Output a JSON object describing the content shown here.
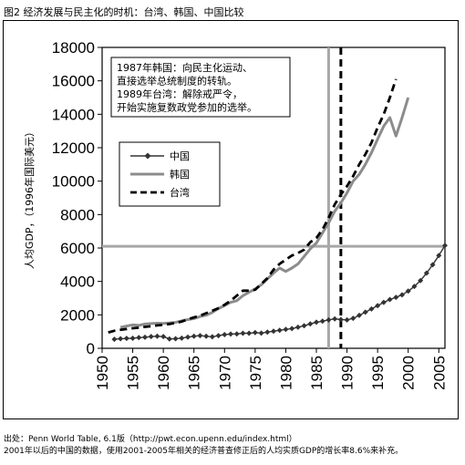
{
  "figure": {
    "title": "图2 经济发展与民主化的时机：台湾、韩国、中国比较",
    "source_line1": "出处：Penn World Table, 6.1版（http://pwt.econ.upenn.edu/index.html）",
    "source_line2": "2001年以后的中国的数据，使用2001-2005年相关的经济普查修正后的人均实质GDP的增长率8.6%来补充。"
  },
  "chart_data": {
    "type": "line",
    "title": "",
    "xlabel": "",
    "ylabel": "人均GDP，（1996年国际美元）",
    "xlim": [
      1950,
      2006
    ],
    "ylim": [
      0,
      18000
    ],
    "x_ticks": [
      1950,
      1955,
      1960,
      1965,
      1970,
      1975,
      1980,
      1985,
      1990,
      1995,
      2000,
      2005
    ],
    "y_ticks": [
      0,
      2000,
      4000,
      6000,
      8000,
      10000,
      12000,
      14000,
      16000,
      18000
    ],
    "legend": {
      "placement": "middle-left"
    },
    "annotation": [
      "1987年韩国：向民主化运动、",
      "直接选举总统制度的转轨。",
      "1989年台湾：解除戒严令，",
      "开始实施复数政党参加的选举。"
    ],
    "reference_lines": [
      {
        "orientation": "vertical",
        "value": 1987,
        "style": "solid-gray"
      },
      {
        "orientation": "vertical",
        "value": 1989,
        "style": "dashed-black"
      },
      {
        "orientation": "horizontal",
        "value": 6100,
        "style": "solid-gray"
      }
    ],
    "series": [
      {
        "name": "中国",
        "style": "diamond-line",
        "color": "#333333",
        "x": [
          1952,
          1953,
          1954,
          1955,
          1956,
          1957,
          1958,
          1959,
          1960,
          1961,
          1962,
          1963,
          1964,
          1965,
          1966,
          1967,
          1968,
          1969,
          1970,
          1971,
          1972,
          1973,
          1974,
          1975,
          1976,
          1977,
          1978,
          1979,
          1980,
          1981,
          1982,
          1983,
          1984,
          1985,
          1986,
          1987,
          1988,
          1989,
          1990,
          1991,
          1992,
          1993,
          1994,
          1995,
          1996,
          1997,
          1998,
          1999,
          2000,
          2001,
          2002,
          2003,
          2004,
          2005,
          2006
        ],
        "y": [
          540,
          570,
          590,
          600,
          640,
          660,
          700,
          720,
          700,
          560,
          570,
          610,
          670,
          720,
          760,
          720,
          690,
          760,
          820,
          850,
          860,
          900,
          900,
          940,
          910,
          970,
          1020,
          1080,
          1130,
          1180,
          1260,
          1350,
          1460,
          1560,
          1620,
          1700,
          1760,
          1720,
          1700,
          1790,
          1970,
          2160,
          2350,
          2550,
          2750,
          2920,
          3050,
          3200,
          3420,
          3700,
          4050,
          4500,
          5000,
          5550,
          6150
        ]
      },
      {
        "name": "韩国",
        "style": "solid-line",
        "color": "#8c8c8c",
        "x": [
          1953,
          1954,
          1955,
          1956,
          1957,
          1958,
          1959,
          1960,
          1961,
          1962,
          1963,
          1964,
          1965,
          1966,
          1967,
          1968,
          1969,
          1970,
          1971,
          1972,
          1973,
          1974,
          1975,
          1976,
          1977,
          1978,
          1979,
          1980,
          1981,
          1982,
          1983,
          1984,
          1985,
          1986,
          1987,
          1988,
          1989,
          1990,
          1991,
          1992,
          1993,
          1994,
          1995,
          1996,
          1997,
          1998,
          1999,
          2000
        ],
        "y": [
          1250,
          1330,
          1400,
          1370,
          1450,
          1480,
          1500,
          1490,
          1520,
          1550,
          1640,
          1720,
          1780,
          1900,
          1980,
          2150,
          2380,
          2560,
          2750,
          2850,
          3150,
          3350,
          3550,
          3800,
          4150,
          4500,
          4800,
          4600,
          4800,
          5050,
          5500,
          5950,
          6300,
          6900,
          7500,
          8200,
          8700,
          9300,
          10000,
          10400,
          11000,
          11700,
          12500,
          13300,
          13800,
          12700,
          13800,
          15000
        ]
      },
      {
        "name": "台湾",
        "style": "dashed-line",
        "color": "#000000",
        "x": [
          1951,
          1952,
          1953,
          1954,
          1955,
          1956,
          1957,
          1958,
          1959,
          1960,
          1961,
          1962,
          1963,
          1964,
          1965,
          1966,
          1967,
          1968,
          1969,
          1970,
          1971,
          1972,
          1973,
          1974,
          1975,
          1976,
          1977,
          1978,
          1979,
          1980,
          1981,
          1982,
          1983,
          1984,
          1985,
          1986,
          1987,
          1988,
          1989,
          1990,
          1991,
          1992,
          1993,
          1994,
          1995,
          1996,
          1997,
          1998
        ],
        "y": [
          950,
          1050,
          1100,
          1150,
          1200,
          1230,
          1280,
          1320,
          1370,
          1400,
          1450,
          1520,
          1600,
          1730,
          1850,
          1950,
          2100,
          2250,
          2400,
          2600,
          2850,
          3150,
          3450,
          3450,
          3500,
          3850,
          4200,
          4700,
          5050,
          5300,
          5550,
          5700,
          5900,
          6350,
          6600,
          7100,
          7800,
          8600,
          9200,
          9700,
          10300,
          11000,
          11600,
          12300,
          13200,
          14000,
          15000,
          16100
        ]
      }
    ]
  }
}
